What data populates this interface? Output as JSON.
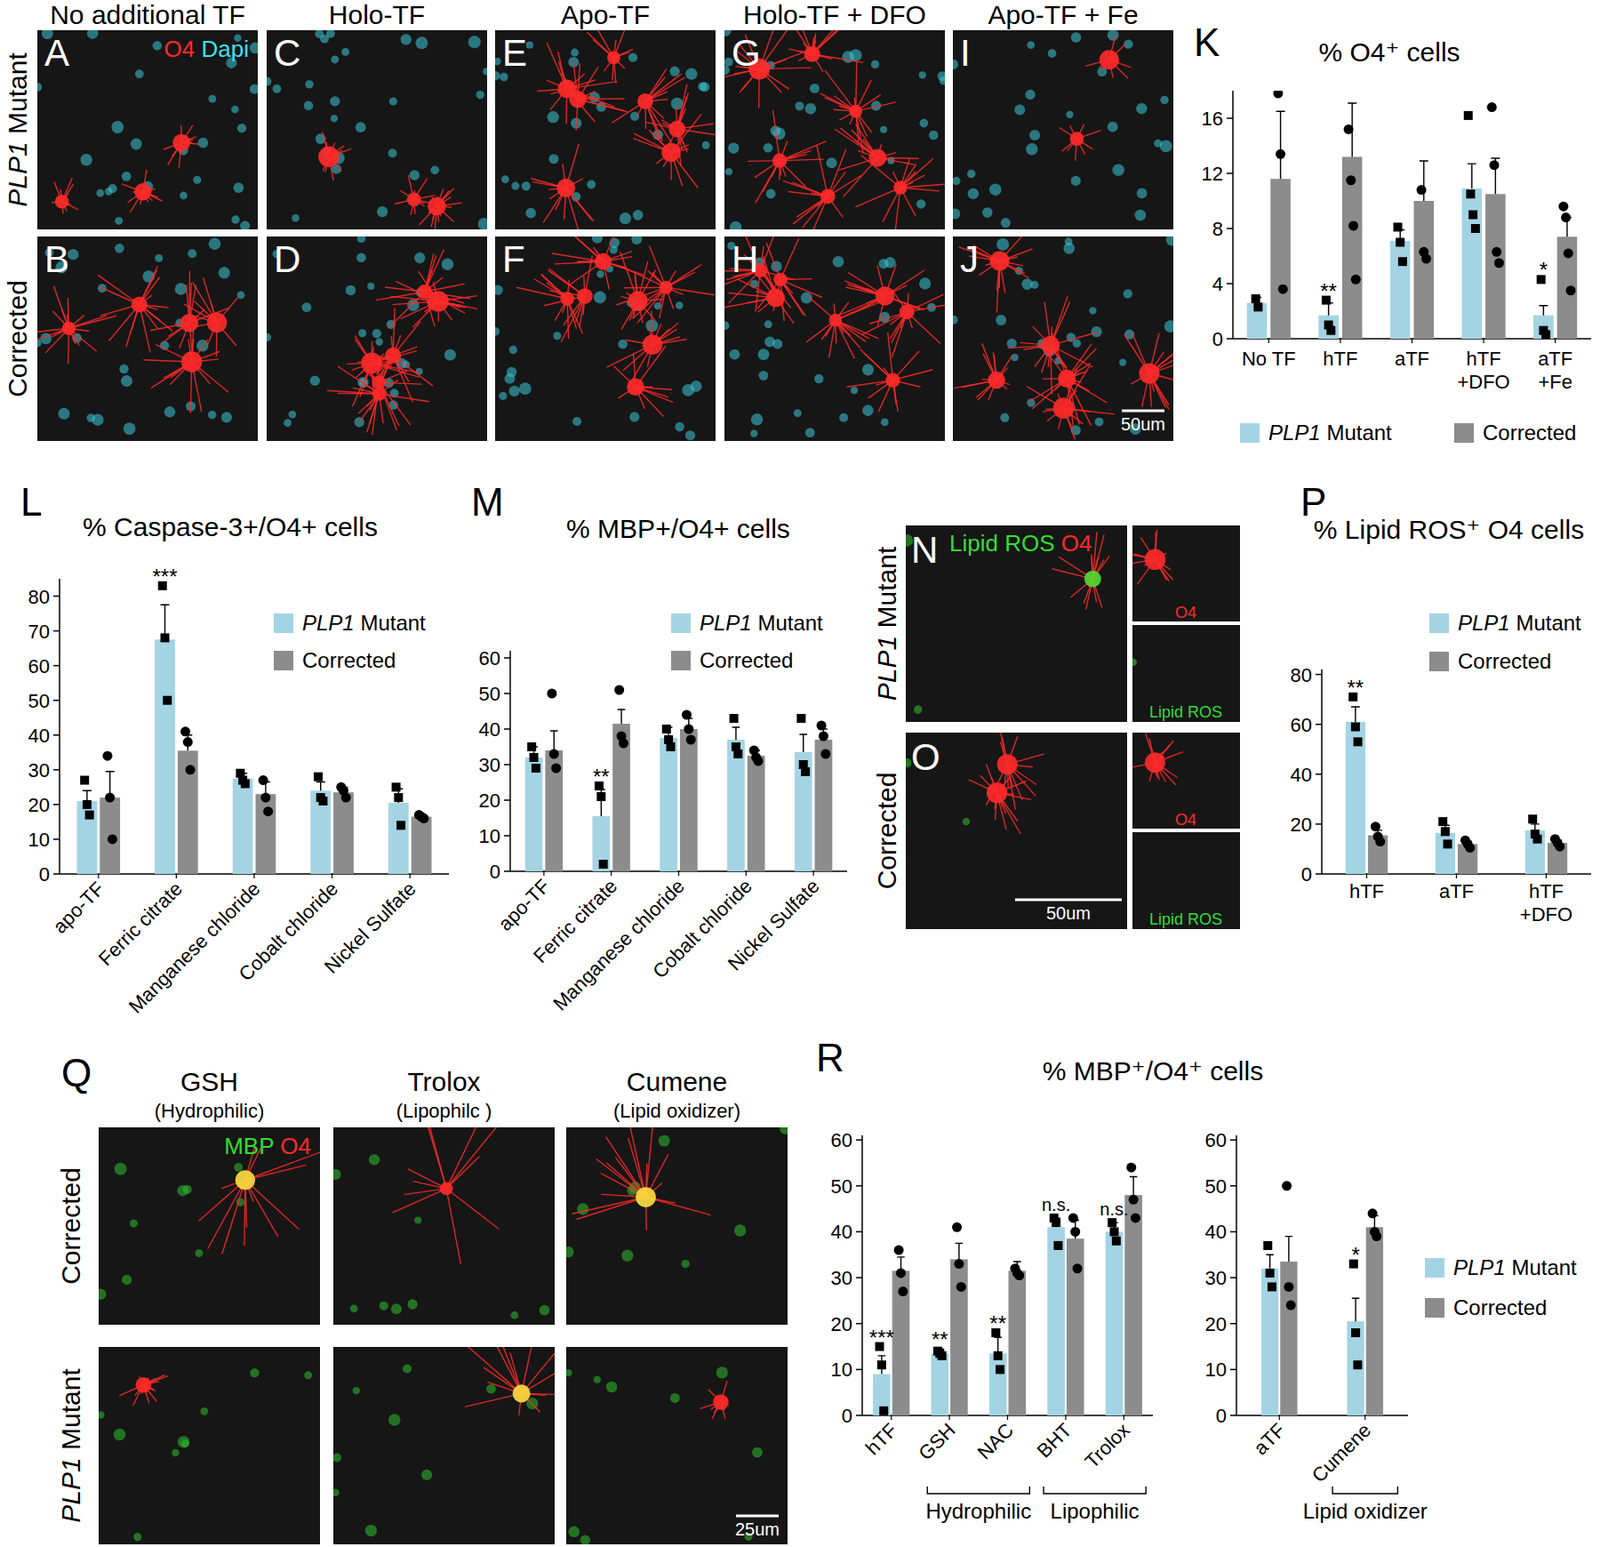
{
  "figure": {
    "treatment_panels": {
      "column_titles": [
        "No additional TF",
        "Holo-TF",
        "Apo-TF",
        "Holo-TF + DFO",
        "Apo-TF + Fe"
      ],
      "row_labels": [
        "PLP1 Mutant",
        "Corrected"
      ],
      "panel_letters": [
        [
          "A",
          "C",
          "E",
          "G",
          "I"
        ],
        [
          "B",
          "D",
          "F",
          "H",
          "J"
        ]
      ],
      "stains": [
        {
          "text": "O4",
          "color": "#ff2a2a"
        },
        {
          "text": "Dapi",
          "color": "#40e0f0"
        }
      ],
      "scale_bar": "50um"
    },
    "lipid_ros_panels": {
      "row_labels": [
        "PLP1 Mutant",
        "Corrected"
      ],
      "panel_letters": [
        "N",
        "O"
      ],
      "stains": [
        {
          "text": "Lipid ROS",
          "color": "#33dd33"
        },
        {
          "text": "O4",
          "color": "#ff2a2a"
        }
      ],
      "inset_labels": [
        {
          "text": "O4",
          "color": "#ff2a2a"
        },
        {
          "text": "Lipid ROS",
          "color": "#33dd33"
        }
      ],
      "scale_bar": "50um"
    },
    "antioxidant_panels": {
      "panel_letter": "Q",
      "column_titles": [
        "GSH",
        "Trolox",
        "Cumene"
      ],
      "column_subtitles": [
        "(Hydrophilic)",
        "(Lipophilc )",
        "(Lipid oxidizer)"
      ],
      "row_labels": [
        "Corrected",
        "PLP1 Mutant"
      ],
      "stains": [
        {
          "text": "MBP",
          "color": "#33dd33"
        },
        {
          "text": "O4",
          "color": "#ff2a2a"
        }
      ],
      "scale_bar": "25um"
    }
  },
  "chart_data": [
    {
      "type": "bar",
      "panel_label": "K",
      "title": "% O4⁺ cells",
      "categories": [
        "No TF",
        "hTF",
        "aTF",
        "hTF +DFO",
        "aTF +Fe"
      ],
      "series": [
        {
          "name": "PLP1 Mutant",
          "color": "#a4d4e4",
          "marker": "square",
          "values": [
            2.6,
            1.7,
            7.1,
            10.9,
            1.7
          ],
          "errors": [
            0.4,
            0.9,
            0.8,
            1.8,
            0.7
          ],
          "points": [
            [
              2.9,
              2.3
            ],
            [
              2.8,
              1.0,
              0.6
            ],
            [
              8.1,
              7.0,
              5.6
            ],
            [
              16.2,
              10.5,
              9.0,
              8.0
            ],
            [
              4.3,
              0.6,
              0.3
            ]
          ],
          "significance": [
            null,
            "**",
            null,
            null,
            "*"
          ]
        },
        {
          "name": "Corrected",
          "color": "#8c8c8c",
          "marker": "circle",
          "values": [
            11.6,
            13.2,
            10.0,
            10.5,
            7.4
          ],
          "errors": [
            4.9,
            3.9,
            2.9,
            2.6,
            1.4
          ],
          "points": [
            [
              17.8,
              13.4,
              3.6
            ],
            [
              15.2,
              11.5,
              8.2,
              4.3
            ],
            [
              10.8,
              6.3,
              5.8
            ],
            [
              16.8,
              12.6,
              6.3,
              5.5
            ],
            [
              9.6,
              8.8,
              6.2,
              3.5
            ]
          ],
          "significance": [
            null,
            null,
            null,
            null,
            null
          ]
        }
      ],
      "ylim": [
        0,
        18
      ],
      "yticks": [
        0,
        4,
        8,
        12,
        16
      ],
      "legend": "bottom"
    },
    {
      "type": "bar",
      "panel_label": "L",
      "title": "% Caspase-3+/O4+ cells",
      "categories": [
        "apo-TF",
        "Ferric citrate",
        "Manganese chloride",
        "Cobalt chloride",
        "Nickel Sulfate"
      ],
      "series": [
        {
          "name": "PLP1 Mutant",
          "color": "#a4d4e4",
          "marker": "square",
          "values": [
            21,
            67.5,
            27.5,
            24,
            20.5
          ],
          "errors": [
            3,
            10,
            1.5,
            2.5,
            4
          ],
          "points": [
            [
              27,
              20,
              17
            ],
            [
              83,
              68,
              50
            ],
            [
              29,
              27,
              26
            ],
            [
              28,
              22,
              21
            ],
            [
              25,
              22,
              14
            ]
          ],
          "significance": [
            null,
            "***",
            null,
            null,
            null
          ]
        },
        {
          "name": "Corrected",
          "color": "#8c8c8c",
          "marker": "circle",
          "values": [
            22,
            35.5,
            23,
            23.5,
            16.5
          ],
          "errors": [
            7.5,
            4.5,
            3.5,
            1.5,
            0.7
          ],
          "points": [
            [
              34,
              22,
              10
            ],
            [
              41,
              38,
              30
            ],
            [
              27,
              22,
              18
            ],
            [
              25,
              24,
              22
            ],
            [
              17,
              16.5,
              16
            ]
          ],
          "significance": [
            null,
            null,
            null,
            null,
            null
          ]
        }
      ],
      "ylim": [
        0,
        85
      ],
      "yticks": [
        0,
        10,
        20,
        30,
        40,
        50,
        60,
        70,
        80
      ],
      "legend": "upper right"
    },
    {
      "type": "bar",
      "panel_label": "M",
      "title": "% MBP+/O4+ cells",
      "categories": [
        "apo-TF",
        "Ferric citrate",
        "Manganese chloride",
        "Cobalt chloride",
        "Nickel Sulfate"
      ],
      "series": [
        {
          "name": "PLP1 Mutant",
          "color": "#a4d4e4",
          "marker": "square",
          "values": [
            32,
            15.5,
            37.5,
            37,
            33.5
          ],
          "errors": [
            3,
            7.5,
            3,
            3.5,
            5
          ],
          "points": [
            [
              35,
              32,
              29
            ],
            [
              24,
              21,
              2
            ],
            [
              40,
              37,
              35
            ],
            [
              43,
              35,
              33
            ],
            [
              43,
              30,
              28
            ]
          ],
          "significance": [
            null,
            "**",
            null,
            null,
            null
          ]
        },
        {
          "name": "Corrected",
          "color": "#8c8c8c",
          "marker": "circle",
          "values": [
            34,
            41.5,
            40,
            32.5,
            37
          ],
          "errors": [
            5.5,
            4,
            3,
            1.5,
            3
          ],
          "points": [
            [
              50,
              33,
              29
            ],
            [
              51,
              38,
              36
            ],
            [
              44,
              40,
              37
            ],
            [
              34,
              32,
              31
            ],
            [
              41,
              38,
              33
            ]
          ],
          "significance": [
            null,
            null,
            null,
            null,
            null
          ]
        }
      ],
      "ylim": [
        0,
        62
      ],
      "yticks": [
        0,
        10,
        20,
        30,
        40,
        50,
        60
      ],
      "legend": "upper right"
    },
    {
      "type": "bar",
      "panel_label": "P",
      "title": "% Lipid ROS⁺ O4 cells",
      "categories": [
        "hTF",
        "aTF",
        "hTF +DFO"
      ],
      "series": [
        {
          "name": "PLP1 Mutant",
          "color": "#a4d4e4",
          "marker": "square",
          "values": [
            61,
            16.5,
            17.5
          ],
          "errors": [
            6,
            3,
            2.5
          ],
          "points": [
            [
              71,
              59,
              53
            ],
            [
              21,
              17,
              12
            ],
            [
              22,
              16,
              14
            ]
          ],
          "significance": [
            "**",
            null,
            null
          ]
        },
        {
          "name": "Corrected",
          "color": "#8c8c8c",
          "marker": "circle",
          "values": [
            15.5,
            12,
            12.5
          ],
          "errors": [
            2,
            1,
            1
          ],
          "points": [
            [
              19,
              15,
              13
            ],
            [
              13.5,
              12,
              10.5
            ],
            [
              14,
              12.5,
              11
            ]
          ],
          "significance": [
            null,
            null,
            null
          ]
        }
      ],
      "ylim": [
        0,
        82
      ],
      "yticks": [
        0,
        20,
        40,
        60,
        80
      ],
      "legend": "upper right"
    },
    {
      "type": "bar",
      "panel_label": "R",
      "title": "% MBP⁺/O4⁺ cells",
      "categories": [
        "hTF",
        "GSH",
        "NAC",
        "BHT",
        "Trolox"
      ],
      "groups": [
        {
          "label": "Hydrophilic",
          "from": "GSH",
          "to": "NAC"
        },
        {
          "label": "Lipophilic",
          "from": "BHT",
          "to": "Trolox"
        }
      ],
      "series": [
        {
          "name": "PLP1 Mutant",
          "color": "#a4d4e4",
          "marker": "square",
          "values": [
            9,
            13.5,
            13.5,
            41,
            40
          ],
          "errors": [
            4,
            1,
            3.5,
            2,
            2
          ],
          "points": [
            [
              15,
              11,
              1
            ],
            [
              14,
              13.5,
              13
            ],
            [
              18,
              13,
              10
            ],
            [
              43,
              42,
              37
            ],
            [
              42,
              40,
              38
            ]
          ],
          "significance": [
            "***",
            "**",
            "**",
            "n.s.",
            "n.s."
          ]
        },
        {
          "name": "Corrected",
          "color": "#8c8c8c",
          "marker": "circle",
          "values": [
            31.5,
            34,
            31.5,
            38.5,
            48
          ],
          "errors": [
            3,
            3.5,
            2,
            4,
            4
          ],
          "points": [
            [
              36,
              31,
              27
            ],
            [
              41,
              33,
              28
            ],
            [
              32,
              31,
              30.5
            ],
            [
              43,
              40,
              32
            ],
            [
              54,
              47,
              43
            ]
          ],
          "significance": [
            null,
            null,
            null,
            null,
            null
          ]
        }
      ],
      "ylim": [
        0,
        61
      ],
      "yticks": [
        0,
        10,
        20,
        30,
        40,
        50,
        60
      ]
    },
    {
      "type": "bar",
      "categories": [
        "aTF",
        "Cumene"
      ],
      "groups": [
        {
          "label": "Lipid oxidizer",
          "from": "Cumene",
          "to": "Cumene"
        }
      ],
      "series": [
        {
          "name": "PLP1 Mutant",
          "color": "#a4d4e4",
          "marker": "square",
          "values": [
            32,
            20.5
          ],
          "errors": [
            3,
            5
          ],
          "points": [
            [
              37,
              31,
              28
            ],
            [
              33,
              18,
              11
            ]
          ],
          "significance": [
            null,
            "*"
          ]
        },
        {
          "name": "Corrected",
          "color": "#8c8c8c",
          "marker": "circle",
          "values": [
            33.5,
            41
          ],
          "errors": [
            5.5,
            2.5
          ],
          "points": [
            [
              50,
              28,
              24
            ],
            [
              44,
              40,
              39
            ]
          ],
          "significance": [
            null,
            null
          ]
        }
      ],
      "ylim": [
        0,
        61
      ],
      "yticks": [
        0,
        10,
        20,
        30,
        40,
        50,
        60
      ],
      "legend": "right"
    }
  ]
}
